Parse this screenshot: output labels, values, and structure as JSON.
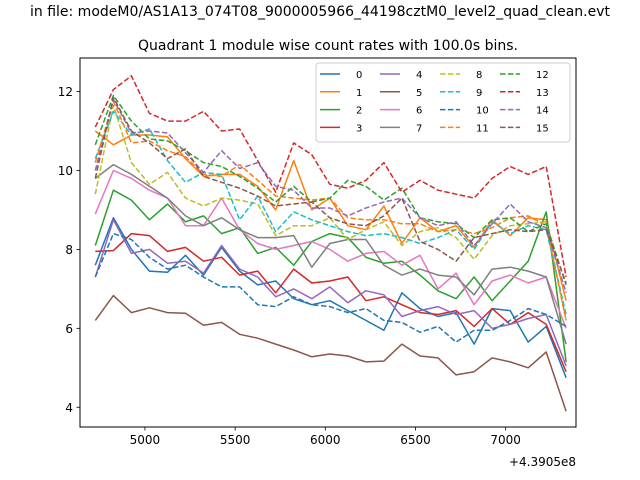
{
  "figure": {
    "suptitle": "in file: modeM0/AS1A13_074T08_9000005966_44198cztM0_level2_quad_clean.evt",
    "offset_label": "+4.3905e8"
  },
  "chart_data": {
    "type": "line",
    "title": "Quadrant 1 module wise count rates with 100.0s bins.",
    "xlabel": "",
    "ylabel": "",
    "xlim": [
      4640,
      7390
    ],
    "ylim": [
      3.5,
      12.85
    ],
    "xticks": [
      5000,
      5500,
      6000,
      6500,
      7000
    ],
    "xtick_labels": [
      "5000",
      "5500",
      "6000",
      "6500",
      "7000"
    ],
    "yticks": [
      4,
      6,
      8,
      10,
      12
    ],
    "ytick_labels": [
      "4",
      "6",
      "8",
      "10",
      "12"
    ],
    "grid": false,
    "legend": {
      "placement": "top-right",
      "columns": 4
    },
    "x": [
      4725,
      4825,
      4925,
      5025,
      5125,
      5225,
      5325,
      5425,
      5525,
      5625,
      5725,
      5825,
      5925,
      6025,
      6125,
      6225,
      6325,
      6425,
      6525,
      6625,
      6725,
      6825,
      6925,
      7025,
      7125,
      7225,
      7335
    ],
    "series": [
      {
        "name": "0",
        "color": "#1f77b4",
        "dash": "solid",
        "values": [
          7.6,
          8.8,
          8.0,
          7.45,
          7.42,
          7.85,
          7.35,
          8.05,
          7.45,
          7.1,
          7.2,
          6.75,
          6.6,
          6.7,
          6.45,
          6.2,
          5.95,
          6.9,
          6.5,
          6.3,
          6.4,
          5.6,
          6.5,
          6.45,
          5.65,
          6.05,
          4.75
        ]
      },
      {
        "name": "1",
        "color": "#ff7f0e",
        "dash": "solid",
        "values": [
          11.0,
          10.65,
          10.9,
          10.9,
          10.85,
          10.3,
          9.85,
          9.9,
          9.9,
          9.6,
          9.0,
          10.25,
          9.0,
          9.3,
          8.6,
          8.5,
          9.1,
          8.15,
          8.8,
          8.45,
          8.6,
          8.05,
          8.75,
          8.35,
          8.8,
          8.75,
          6.7
        ]
      },
      {
        "name": "2",
        "color": "#2ca02c",
        "dash": "solid",
        "values": [
          8.1,
          9.5,
          9.25,
          8.75,
          9.15,
          8.7,
          8.85,
          8.4,
          8.55,
          7.9,
          8.05,
          7.6,
          8.2,
          8.4,
          8.3,
          7.8,
          7.65,
          7.7,
          7.35,
          6.95,
          6.75,
          7.3,
          6.7,
          7.2,
          7.7,
          8.95,
          5.15
        ]
      },
      {
        "name": "3",
        "color": "#d62728",
        "dash": "solid",
        "values": [
          7.95,
          7.97,
          8.4,
          8.35,
          7.95,
          8.05,
          7.7,
          7.8,
          7.35,
          7.45,
          6.9,
          7.5,
          7.15,
          7.2,
          7.3,
          6.7,
          6.8,
          6.6,
          6.4,
          6.35,
          6.45,
          6.05,
          6.5,
          6.1,
          6.4,
          6.1,
          4.9
        ]
      },
      {
        "name": "4",
        "color": "#9467bd",
        "dash": "solid",
        "values": [
          7.3,
          8.75,
          7.9,
          8.0,
          7.65,
          7.7,
          7.4,
          8.1,
          7.5,
          7.3,
          6.8,
          7.0,
          6.75,
          7.05,
          6.65,
          6.95,
          6.85,
          6.3,
          6.45,
          6.55,
          6.35,
          6.45,
          6.0,
          6.1,
          6.25,
          6.35,
          5.05
        ]
      },
      {
        "name": "5",
        "color": "#8c564b",
        "dash": "solid",
        "values": [
          6.2,
          6.83,
          6.4,
          6.52,
          6.4,
          6.38,
          6.08,
          6.15,
          5.85,
          5.75,
          5.6,
          5.45,
          5.28,
          5.35,
          5.3,
          5.15,
          5.17,
          5.6,
          5.3,
          5.25,
          4.82,
          4.9,
          5.25,
          5.15,
          5.0,
          5.4,
          3.9
        ]
      },
      {
        "name": "6",
        "color": "#e377c2",
        "dash": "solid",
        "values": [
          8.9,
          10.0,
          9.8,
          9.5,
          9.3,
          8.6,
          8.6,
          9.3,
          8.5,
          8.15,
          8.0,
          8.1,
          8.2,
          8.0,
          7.7,
          7.9,
          7.95,
          7.6,
          7.85,
          7.0,
          7.4,
          6.6,
          7.2,
          7.35,
          7.15,
          7.3,
          6.0
        ]
      },
      {
        "name": "7",
        "color": "#7f7f7f",
        "dash": "solid",
        "values": [
          9.8,
          10.15,
          9.9,
          9.6,
          9.3,
          8.85,
          8.6,
          8.8,
          8.5,
          8.3,
          8.3,
          8.35,
          7.55,
          8.15,
          8.25,
          8.25,
          7.6,
          7.35,
          7.5,
          7.35,
          7.3,
          6.85,
          7.5,
          7.55,
          7.45,
          7.3,
          5.6
        ]
      },
      {
        "name": "8",
        "color": "#bcbd22",
        "dash": "dashed",
        "values": [
          9.4,
          11.65,
          10.2,
          9.65,
          9.95,
          9.3,
          9.1,
          9.3,
          9.25,
          9.15,
          8.35,
          8.6,
          8.6,
          8.8,
          8.25,
          8.5,
          8.7,
          8.1,
          8.45,
          8.55,
          8.3,
          7.75,
          8.35,
          8.6,
          8.65,
          8.7,
          6.2
        ]
      },
      {
        "name": "9",
        "color": "#17becf",
        "dash": "dashed",
        "values": [
          10.3,
          11.5,
          10.9,
          11.05,
          10.25,
          9.7,
          9.95,
          9.9,
          8.75,
          9.35,
          8.45,
          8.95,
          8.75,
          8.6,
          8.45,
          8.35,
          8.4,
          8.3,
          8.15,
          8.3,
          8.5,
          8.0,
          8.7,
          8.4,
          8.6,
          8.5,
          6.35
        ]
      },
      {
        "name": "10",
        "color": "#1f77b4",
        "dash": "dashed",
        "values": [
          7.3,
          8.4,
          8.25,
          7.8,
          7.5,
          7.6,
          7.3,
          7.05,
          7.05,
          6.6,
          6.55,
          6.8,
          6.6,
          6.55,
          6.4,
          6.5,
          6.2,
          6.15,
          5.9,
          6.05,
          5.65,
          5.95,
          5.95,
          6.2,
          6.5,
          6.35,
          6.05
        ]
      },
      {
        "name": "11",
        "color": "#ff7f0e",
        "dash": "dashed",
        "values": [
          10.2,
          11.75,
          10.7,
          10.75,
          10.5,
          10.35,
          9.9,
          9.85,
          10.15,
          9.75,
          9.35,
          9.3,
          9.25,
          9.3,
          8.8,
          8.75,
          8.75,
          8.65,
          8.65,
          8.45,
          8.5,
          8.4,
          8.55,
          8.8,
          8.85,
          8.6,
          6.2
        ]
      },
      {
        "name": "12",
        "color": "#2ca02c",
        "dash": "dashed",
        "values": [
          10.65,
          11.9,
          11.25,
          10.8,
          10.75,
          10.5,
          10.2,
          10.1,
          9.85,
          9.55,
          9.2,
          9.6,
          9.2,
          9.3,
          9.75,
          9.6,
          9.25,
          9.55,
          8.8,
          8.7,
          8.65,
          8.3,
          8.75,
          8.8,
          8.45,
          8.65,
          7.1
        ]
      },
      {
        "name": "13",
        "color": "#d62728",
        "dash": "dashed",
        "values": [
          11.1,
          12.05,
          12.4,
          11.45,
          11.25,
          11.25,
          11.5,
          11.0,
          11.05,
          10.25,
          9.45,
          10.7,
          10.4,
          9.65,
          9.55,
          9.75,
          10.2,
          9.45,
          9.75,
          9.5,
          9.4,
          9.3,
          9.8,
          10.1,
          9.9,
          10.1,
          7.3
        ]
      },
      {
        "name": "14",
        "color": "#9467bd",
        "dash": "dashed",
        "values": [
          10.0,
          11.8,
          10.95,
          11.0,
          10.95,
          10.45,
          9.95,
          10.5,
          10.05,
          10.2,
          9.6,
          9.5,
          9.05,
          9.05,
          8.85,
          9.05,
          9.2,
          9.3,
          8.8,
          8.6,
          8.7,
          8.1,
          8.65,
          9.15,
          8.7,
          8.55,
          6.9
        ]
      },
      {
        "name": "15",
        "color": "#8c564b",
        "dash": "dashed",
        "values": [
          9.8,
          11.85,
          11.0,
          10.7,
          10.3,
          10.55,
          9.85,
          9.7,
          9.55,
          9.35,
          9.1,
          9.15,
          9.2,
          8.8,
          8.65,
          8.6,
          8.85,
          9.3,
          8.2,
          8.0,
          7.7,
          8.3,
          8.4,
          8.5,
          8.45,
          8.5,
          7.15
        ]
      }
    ]
  }
}
